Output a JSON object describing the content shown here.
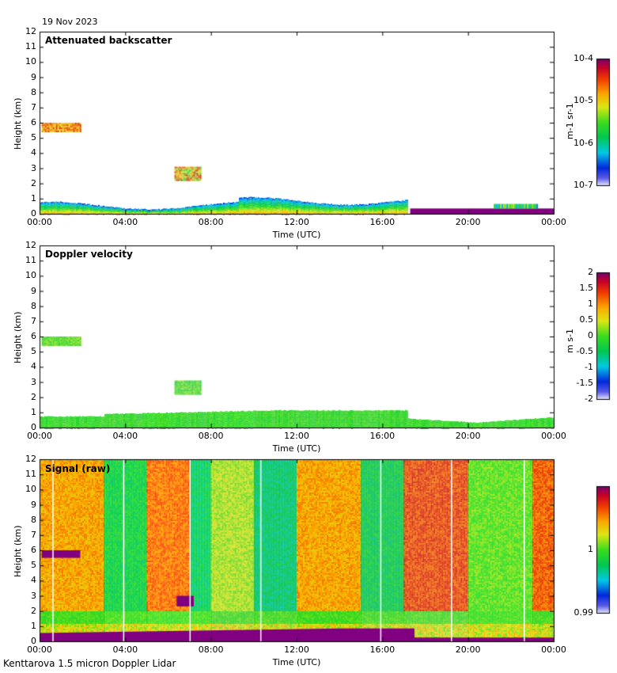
{
  "date_label": "19 Nov 2023",
  "footer_label": "Kenttarova 1.5 micron Doppler Lidar",
  "colors": {
    "white": "#ffffff",
    "purple": "#800080"
  },
  "chart_data": [
    {
      "type": "heatmap",
      "title": "Attenuated backscatter",
      "xlabel": "Time (UTC)",
      "ylabel": "Height (km)",
      "x_ticks": [
        "00:00",
        "04:00",
        "08:00",
        "12:00",
        "16:00",
        "20:00",
        "00:00"
      ],
      "xlim_hours": [
        0,
        24
      ],
      "ylim": [
        0,
        12
      ],
      "y_ticks": [
        "0",
        "1",
        "2",
        "3",
        "4",
        "5",
        "6",
        "7",
        "8",
        "9",
        "10",
        "11",
        "12"
      ],
      "colorbar": {
        "scale": "log",
        "ticks": [
          "10-7",
          "10-6",
          "10-5",
          "10-4"
        ],
        "label": "m-1 sr-1"
      },
      "features": [
        {
          "name": "boundary layer",
          "t0": 0,
          "t1": 17.2,
          "h_top": 0.7
        },
        {
          "name": "cloud layer",
          "t0": 0.1,
          "t1": 1.9,
          "h_bottom": 5.4,
          "h_top": 6.0
        },
        {
          "name": "cloud layer",
          "t0": 6.3,
          "t1": 7.5,
          "h_bottom": 2.2,
          "h_top": 3.1
        },
        {
          "name": "low layer",
          "t0": 17.3,
          "t1": 24,
          "h_top": 0.35
        }
      ]
    },
    {
      "type": "heatmap",
      "title": "Doppler velocity",
      "xlabel": "Time (UTC)",
      "ylabel": "Height (km)",
      "x_ticks": [
        "00:00",
        "04:00",
        "08:00",
        "12:00",
        "16:00",
        "20:00",
        "00:00"
      ],
      "xlim_hours": [
        0,
        24
      ],
      "ylim": [
        0,
        12
      ],
      "y_ticks": [
        "0",
        "1",
        "2",
        "3",
        "4",
        "5",
        "6",
        "7",
        "8",
        "9",
        "10",
        "11",
        "12"
      ],
      "colorbar": {
        "scale": "linear",
        "range": [
          -2,
          2
        ],
        "ticks": [
          "-2",
          "-1.5",
          "-1",
          "-0.5",
          "0",
          "0.5",
          "1",
          "1.5",
          "2"
        ],
        "label": "m s-1"
      }
    },
    {
      "type": "heatmap",
      "title": "Signal (raw)",
      "xlabel": "Time (UTC)",
      "ylabel": "Height (km)",
      "x_ticks": [
        "00:00",
        "04:00",
        "08:00",
        "12:00",
        "16:00",
        "20:00",
        "00:00"
      ],
      "xlim_hours": [
        0,
        24
      ],
      "ylim": [
        0,
        12
      ],
      "y_ticks": [
        "0",
        "1",
        "2",
        "3",
        "4",
        "5",
        "6",
        "7",
        "8",
        "9",
        "10",
        "11",
        "12"
      ],
      "colorbar": {
        "scale": "linear",
        "range": [
          0.99,
          1.01
        ],
        "ticks": [
          "0.99",
          "1"
        ],
        "label": ""
      },
      "bands": [
        {
          "t0": 0,
          "t1": 3.0,
          "level": 0.72
        },
        {
          "t0": 3.0,
          "t1": 5.0,
          "level": 0.42
        },
        {
          "t0": 5.0,
          "t1": 7.0,
          "level": 0.78
        },
        {
          "t0": 7.0,
          "t1": 8.0,
          "level": 0.38
        },
        {
          "t0": 8.0,
          "t1": 10.0,
          "level": 0.58
        },
        {
          "t0": 10.0,
          "t1": 12.0,
          "level": 0.36
        },
        {
          "t0": 12.0,
          "t1": 15.0,
          "level": 0.72
        },
        {
          "t0": 15.0,
          "t1": 17.0,
          "level": 0.4
        },
        {
          "t0": 17.0,
          "t1": 20.0,
          "level": 0.83
        },
        {
          "t0": 20.0,
          "t1": 23.0,
          "level": 0.52
        },
        {
          "t0": 23.0,
          "t1": 24.0,
          "level": 0.8
        }
      ],
      "gap_hours": [
        0.6,
        3.9,
        7.0,
        10.3,
        15.9,
        19.2,
        22.6
      ]
    }
  ]
}
